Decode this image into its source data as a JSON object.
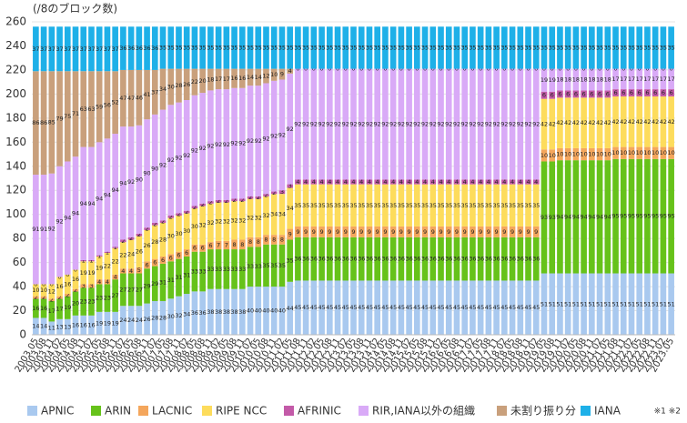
{
  "chart_data": {
    "type": "stacked_bar",
    "y_label": "(/8のブロック数)",
    "note": "※1 ※2",
    "ylim": [
      0,
      260
    ],
    "yticks": [
      0,
      20,
      40,
      60,
      80,
      100,
      120,
      140,
      160,
      180,
      200,
      220,
      240,
      260
    ],
    "grid": true,
    "legend": "bottom",
    "categories": [
      "2003.05",
      "2003.08",
      "2003.11",
      "2004.02",
      "2004.05",
      "2004.08",
      "2004.11",
      "2005.02",
      "2005.05",
      "2005.08",
      "2005.11",
      "2006.02",
      "2006.05",
      "2006.08",
      "2006.11",
      "2007.02",
      "2007.05",
      "2007.08",
      "2007.11",
      "2008.02",
      "2008.05",
      "2008.08",
      "2008.11",
      "2009.02",
      "2009.05",
      "2009.08",
      "2009.11",
      "2010.02",
      "2010.05",
      "2010.08",
      "2010.11",
      "2011.02",
      "2011.05",
      "2011.08",
      "2011.11",
      "2012.02",
      "2012.05",
      "2012.08",
      "2012.11",
      "2013.02",
      "2013.05",
      "2013.08",
      "2013.11",
      "2014.02",
      "2014.05",
      "2014.08",
      "2014.11",
      "2015.02",
      "2015.05",
      "2015.08",
      "2015.11",
      "2016.02",
      "2016.05",
      "2016.08",
      "2016.11",
      "2017.02",
      "2017.05",
      "2017.08",
      "2017.11",
      "2018.02",
      "2018.05",
      "2018.08",
      "2018.11",
      "2019.02",
      "2019.05",
      "2019.08",
      "2019.11",
      "2020.02",
      "2020.05",
      "2020.08",
      "2020.11",
      "2021.02",
      "2021.05",
      "2021.08",
      "2021.11",
      "2022.02",
      "2022.05",
      "2022.08",
      "2022.11",
      "2023.02",
      "2023.05"
    ],
    "series": [
      {
        "name": "APNIC",
        "color": "#a9c9ef",
        "values": [
          14,
          14,
          11,
          13,
          13,
          16,
          16,
          16,
          19,
          19,
          19,
          24,
          24,
          24,
          26,
          28,
          28,
          30,
          32,
          34,
          36,
          36,
          38,
          38,
          38,
          38,
          38,
          40,
          40,
          40,
          40,
          40,
          44,
          45,
          45,
          45,
          45,
          45,
          45,
          45,
          45,
          45,
          45,
          45,
          45,
          45,
          45,
          45,
          45,
          45,
          45,
          45,
          45,
          45,
          45,
          45,
          45,
          45,
          45,
          45,
          45,
          45,
          45,
          45,
          51,
          51,
          51,
          51,
          51,
          51,
          51,
          51,
          51,
          51,
          51,
          51,
          51,
          51,
          51,
          51,
          51
        ]
      },
      {
        "name": "ARIN",
        "color": "#66c21a",
        "values": [
          16,
          16,
          17,
          17,
          19,
          20,
          23,
          23,
          23,
          23,
          27,
          27,
          27,
          27,
          29,
          29,
          31,
          31,
          31,
          31,
          33,
          33,
          33,
          33,
          33,
          33,
          33,
          33,
          33,
          35,
          35,
          35,
          35,
          36,
          36,
          36,
          36,
          36,
          36,
          36,
          36,
          36,
          36,
          36,
          36,
          36,
          36,
          36,
          36,
          36,
          36,
          36,
          36,
          36,
          36,
          36,
          36,
          36,
          36,
          36,
          36,
          36,
          36,
          36,
          93,
          93,
          94,
          94,
          94,
          94,
          94,
          94,
          94,
          95,
          95,
          95,
          95,
          95,
          95,
          95,
          95
        ]
      },
      {
        "name": "LACNIC",
        "color": "#f4a65c",
        "values": [
          2,
          2,
          2,
          2,
          2,
          2,
          3,
          3,
          4,
          4,
          4,
          4,
          4,
          5,
          6,
          6,
          6,
          6,
          6,
          6,
          6,
          6,
          6,
          7,
          7,
          8,
          8,
          8,
          8,
          8,
          8,
          8,
          9,
          9,
          9,
          9,
          9,
          9,
          9,
          9,
          9,
          9,
          9,
          9,
          9,
          9,
          9,
          9,
          9,
          9,
          9,
          9,
          9,
          9,
          9,
          9,
          9,
          9,
          9,
          9,
          9,
          9,
          9,
          9,
          10,
          10,
          10,
          10,
          10,
          10,
          10,
          10,
          10,
          10,
          10,
          10,
          10,
          10,
          10,
          10,
          10
        ]
      },
      {
        "name": "RIPE NCC",
        "color": "#fddc5c",
        "values": [
          10,
          10,
          12,
          16,
          16,
          16,
          19,
          19,
          19,
          22,
          22,
          22,
          24,
          26,
          26,
          28,
          28,
          30,
          30,
          30,
          30,
          32,
          32,
          32,
          32,
          32,
          32,
          32,
          32,
          32,
          34,
          34,
          34,
          35,
          35,
          35,
          35,
          35,
          35,
          35,
          35,
          35,
          35,
          35,
          35,
          35,
          35,
          35,
          35,
          35,
          35,
          35,
          35,
          35,
          35,
          35,
          35,
          35,
          35,
          35,
          35,
          35,
          35,
          35,
          42,
          42,
          42,
          42,
          42,
          42,
          42,
          42,
          42,
          42,
          42,
          42,
          42,
          42,
          42,
          42,
          42
        ]
      },
      {
        "name": "AFRINIC",
        "color": "#c35aa8",
        "values": [
          0,
          0,
          0,
          0,
          0,
          0,
          1,
          1,
          1,
          1,
          1,
          2,
          2,
          2,
          2,
          2,
          2,
          2,
          2,
          2,
          2,
          2,
          2,
          2,
          2,
          2,
          2,
          2,
          2,
          2,
          2,
          3,
          3,
          4,
          4,
          4,
          4,
          4,
          4,
          4,
          4,
          4,
          4,
          4,
          4,
          4,
          4,
          4,
          4,
          4,
          4,
          4,
          4,
          4,
          4,
          4,
          4,
          4,
          4,
          4,
          4,
          4,
          4,
          4,
          6,
          6,
          6,
          6,
          6,
          6,
          6,
          6,
          6,
          6,
          6,
          6,
          6,
          6,
          6,
          6,
          6
        ]
      },
      {
        "name": "RIR,IANA以外の組織",
        "color": "#d9aaf7",
        "values": [
          91,
          91,
          92,
          92,
          94,
          94,
          94,
          94,
          94,
          94,
          94,
          94,
          92,
          90,
          90,
          90,
          92,
          92,
          92,
          92,
          92,
          92,
          92,
          92,
          92,
          92,
          92,
          92,
          92,
          92,
          92,
          92,
          92,
          92,
          92,
          92,
          92,
          92,
          92,
          92,
          92,
          92,
          92,
          92,
          92,
          92,
          92,
          92,
          92,
          92,
          92,
          92,
          92,
          92,
          92,
          92,
          92,
          92,
          92,
          92,
          92,
          92,
          92,
          92,
          19,
          19,
          18,
          18,
          18,
          18,
          18,
          18,
          18,
          17,
          17,
          17,
          17,
          17,
          17,
          17,
          17
        ]
      },
      {
        "name": "未割り振り分",
        "color": "#c9a07c",
        "values": [
          86,
          86,
          85,
          79,
          75,
          71,
          63,
          63,
          59,
          56,
          52,
          47,
          47,
          46,
          41,
          37,
          34,
          30,
          28,
          26,
          22,
          20,
          18,
          17,
          17,
          16,
          16,
          14,
          14,
          12,
          10,
          9,
          4,
          0,
          0,
          0,
          0,
          0,
          0,
          0,
          0,
          0,
          0,
          0,
          0,
          0,
          0,
          0,
          0,
          0,
          0,
          0,
          0,
          0,
          0,
          0,
          0,
          0,
          0,
          0,
          0,
          0,
          0,
          0,
          0,
          0,
          0,
          0,
          0,
          0,
          0,
          0,
          0,
          0,
          0,
          0,
          0,
          0,
          0,
          0,
          0
        ]
      },
      {
        "name": "IANA",
        "color": "#1eb0e8",
        "values": [
          37,
          37,
          37,
          37,
          37,
          37,
          37,
          37,
          37,
          37,
          37,
          36,
          36,
          36,
          36,
          36,
          35,
          35,
          35,
          35,
          35,
          35,
          35,
          35,
          35,
          35,
          35,
          35,
          35,
          35,
          35,
          35,
          35,
          35,
          35,
          35,
          35,
          35,
          35,
          35,
          35,
          35,
          35,
          35,
          35,
          35,
          35,
          35,
          35,
          35,
          35,
          35,
          35,
          35,
          35,
          35,
          35,
          35,
          35,
          35,
          35,
          35,
          35,
          35,
          35,
          35,
          35,
          35,
          35,
          35,
          35,
          35,
          35,
          35,
          35,
          35,
          35,
          35,
          35,
          35,
          35
        ]
      }
    ]
  }
}
